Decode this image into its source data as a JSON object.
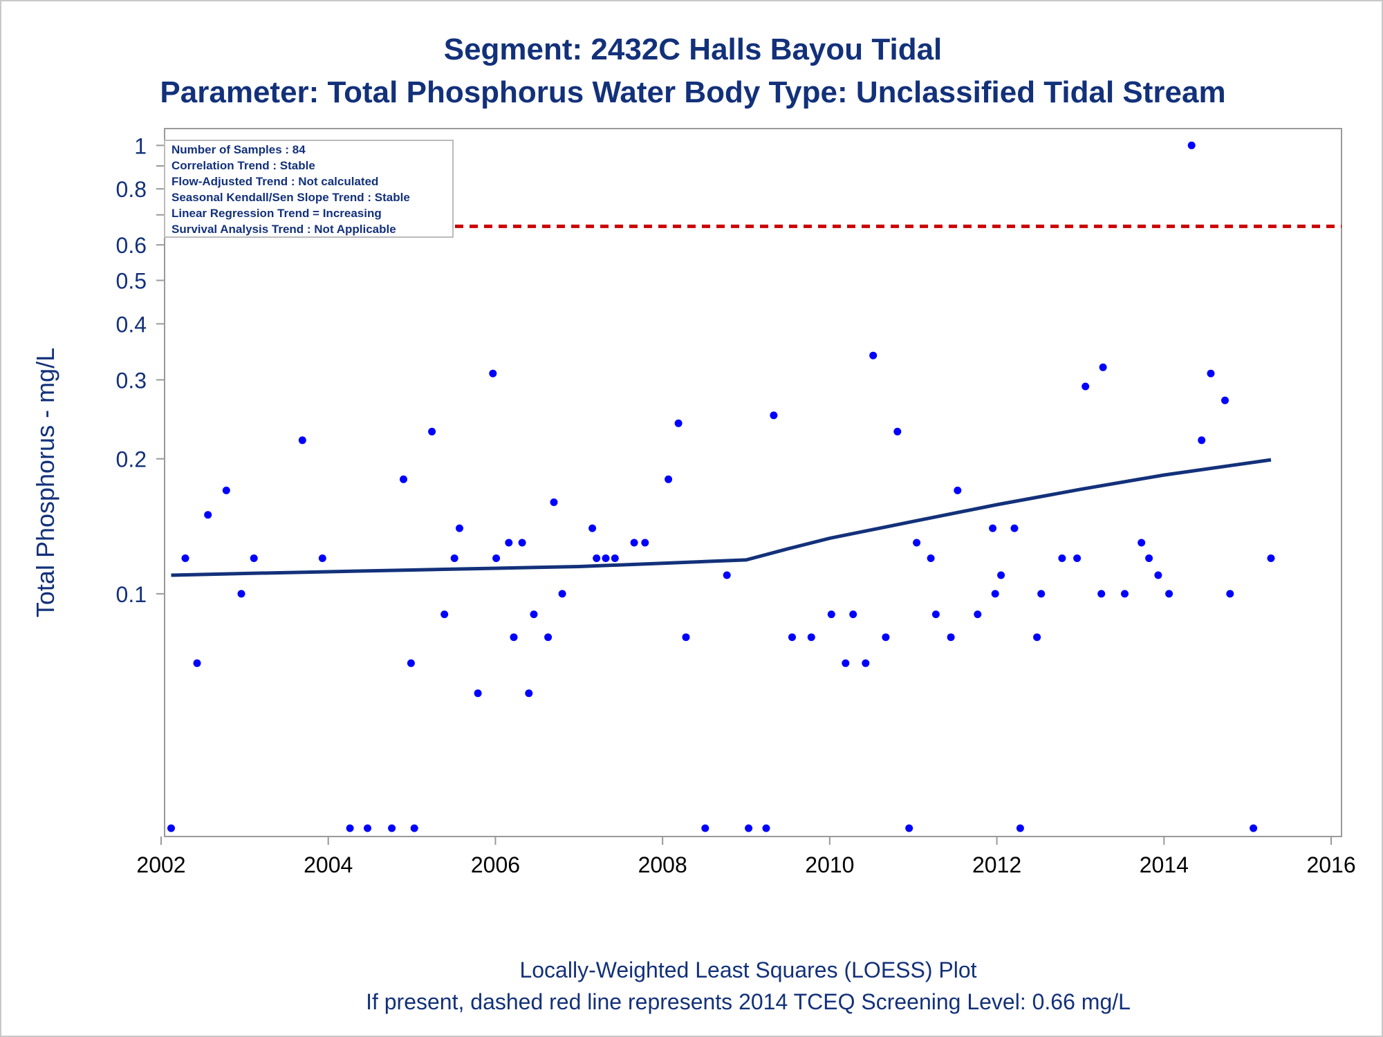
{
  "chart_data": {
    "type": "scatter",
    "title": "Segment: 2432C  Halls Bayou Tidal",
    "subtitle": "Parameter: Total Phosphorus   Water Body Type: Unclassified Tidal Stream",
    "ylabel": "Total Phosphorus - mg/L",
    "xlabel": "",
    "x_scale": "linear (year)",
    "y_scale": "log",
    "xlim": [
      2002,
      2016
    ],
    "ylim": [
      0.03,
      1.03
    ],
    "x_ticks": [
      "2002",
      "2004",
      "2006",
      "2008",
      "2010",
      "2012",
      "2014",
      "2016"
    ],
    "y_ticks": [
      {
        "value": 1,
        "label": "1"
      },
      {
        "value": 0.8,
        "label": "0.8"
      },
      {
        "value": 0.6,
        "label": "0.6"
      },
      {
        "value": 0.5,
        "label": "0.5"
      },
      {
        "value": 0.4,
        "label": "0.4"
      },
      {
        "value": 0.3,
        "label": "0.3"
      },
      {
        "value": 0.2,
        "label": "0.2"
      },
      {
        "value": 0.1,
        "label": "0.1"
      }
    ],
    "y_minor_ticks": [
      0.9,
      0.7
    ],
    "grid": false,
    "legend": "none",
    "inset_box": {
      "position": "top-left",
      "lines": [
        "Number of Samples : 84",
        "Correlation Trend : Stable",
        "Flow-Adjusted Trend : Not calculated",
        "Seasonal Kendall/Sen Slope Trend : Stable",
        "Linear Regression Trend = Increasing",
        "Survival Analysis Trend : Not Applicable"
      ]
    },
    "screening_level": {
      "value": 0.66,
      "color": "#cc0000",
      "style": "dashed"
    },
    "point_color": "#0000ff",
    "loess_color": "#13317a",
    "points": [
      {
        "x": 2002.12,
        "y": 0.03
      },
      {
        "x": 2002.29,
        "y": 0.12
      },
      {
        "x": 2002.43,
        "y": 0.07
      },
      {
        "x": 2002.56,
        "y": 0.15
      },
      {
        "x": 2002.78,
        "y": 0.17
      },
      {
        "x": 2002.96,
        "y": 0.1
      },
      {
        "x": 2003.11,
        "y": 0.12
      },
      {
        "x": 2003.69,
        "y": 0.22
      },
      {
        "x": 2003.93,
        "y": 0.12
      },
      {
        "x": 2004.26,
        "y": 0.03
      },
      {
        "x": 2004.47,
        "y": 0.03
      },
      {
        "x": 2004.76,
        "y": 0.03
      },
      {
        "x": 2004.9,
        "y": 0.18
      },
      {
        "x": 2004.99,
        "y": 0.07
      },
      {
        "x": 2005.03,
        "y": 0.03
      },
      {
        "x": 2005.24,
        "y": 0.23
      },
      {
        "x": 2005.39,
        "y": 0.09
      },
      {
        "x": 2005.51,
        "y": 0.12
      },
      {
        "x": 2005.57,
        "y": 0.14
      },
      {
        "x": 2005.79,
        "y": 0.06
      },
      {
        "x": 2005.97,
        "y": 0.31
      },
      {
        "x": 2006.01,
        "y": 0.12
      },
      {
        "x": 2006.16,
        "y": 0.13
      },
      {
        "x": 2006.22,
        "y": 0.08
      },
      {
        "x": 2006.32,
        "y": 0.13
      },
      {
        "x": 2006.4,
        "y": 0.06
      },
      {
        "x": 2006.46,
        "y": 0.09
      },
      {
        "x": 2006.63,
        "y": 0.08
      },
      {
        "x": 2006.7,
        "y": 0.16
      },
      {
        "x": 2006.8,
        "y": 0.1
      },
      {
        "x": 2007.16,
        "y": 0.14
      },
      {
        "x": 2007.21,
        "y": 0.12
      },
      {
        "x": 2007.32,
        "y": 0.12
      },
      {
        "x": 2007.43,
        "y": 0.12
      },
      {
        "x": 2007.66,
        "y": 0.13
      },
      {
        "x": 2007.79,
        "y": 0.13
      },
      {
        "x": 2008.07,
        "y": 0.18
      },
      {
        "x": 2008.19,
        "y": 0.24
      },
      {
        "x": 2008.28,
        "y": 0.08
      },
      {
        "x": 2008.51,
        "y": 0.03
      },
      {
        "x": 2008.77,
        "y": 0.11
      },
      {
        "x": 2009.03,
        "y": 0.03
      },
      {
        "x": 2009.24,
        "y": 0.03
      },
      {
        "x": 2009.33,
        "y": 0.25
      },
      {
        "x": 2009.55,
        "y": 0.08
      },
      {
        "x": 2009.78,
        "y": 0.08
      },
      {
        "x": 2010.02,
        "y": 0.09
      },
      {
        "x": 2010.19,
        "y": 0.07
      },
      {
        "x": 2010.28,
        "y": 0.09
      },
      {
        "x": 2010.43,
        "y": 0.07
      },
      {
        "x": 2010.52,
        "y": 0.34
      },
      {
        "x": 2010.67,
        "y": 0.08
      },
      {
        "x": 2010.81,
        "y": 0.23
      },
      {
        "x": 2010.95,
        "y": 0.03
      },
      {
        "x": 2011.04,
        "y": 0.13
      },
      {
        "x": 2011.21,
        "y": 0.12
      },
      {
        "x": 2011.27,
        "y": 0.09
      },
      {
        "x": 2011.45,
        "y": 0.08
      },
      {
        "x": 2011.53,
        "y": 0.17
      },
      {
        "x": 2011.77,
        "y": 0.09
      },
      {
        "x": 2011.95,
        "y": 0.14
      },
      {
        "x": 2011.98,
        "y": 0.1
      },
      {
        "x": 2012.05,
        "y": 0.11
      },
      {
        "x": 2012.21,
        "y": 0.14
      },
      {
        "x": 2012.28,
        "y": 0.03
      },
      {
        "x": 2012.48,
        "y": 0.08
      },
      {
        "x": 2012.53,
        "y": 0.1
      },
      {
        "x": 2012.78,
        "y": 0.12
      },
      {
        "x": 2012.96,
        "y": 0.12
      },
      {
        "x": 2013.06,
        "y": 0.29
      },
      {
        "x": 2013.25,
        "y": 0.1
      },
      {
        "x": 2013.27,
        "y": 0.32
      },
      {
        "x": 2013.53,
        "y": 0.1
      },
      {
        "x": 2013.73,
        "y": 0.13
      },
      {
        "x": 2013.82,
        "y": 0.12
      },
      {
        "x": 2013.93,
        "y": 0.11
      },
      {
        "x": 2014.06,
        "y": 0.1
      },
      {
        "x": 2014.33,
        "y": 1.0
      },
      {
        "x": 2014.45,
        "y": 0.22
      },
      {
        "x": 2014.56,
        "y": 0.31
      },
      {
        "x": 2014.73,
        "y": 0.27
      },
      {
        "x": 2014.79,
        "y": 0.1
      },
      {
        "x": 2015.07,
        "y": 0.03
      },
      {
        "x": 2015.28,
        "y": 0.12
      }
    ],
    "loess": [
      {
        "x": 2002.12,
        "y": 0.11
      },
      {
        "x": 2003.0,
        "y": 0.111
      },
      {
        "x": 2004.0,
        "y": 0.112
      },
      {
        "x": 2005.0,
        "y": 0.113
      },
      {
        "x": 2006.0,
        "y": 0.114
      },
      {
        "x": 2007.0,
        "y": 0.115
      },
      {
        "x": 2008.0,
        "y": 0.117
      },
      {
        "x": 2009.0,
        "y": 0.119
      },
      {
        "x": 2009.5,
        "y": 0.126
      },
      {
        "x": 2010.0,
        "y": 0.133
      },
      {
        "x": 2011.0,
        "y": 0.145
      },
      {
        "x": 2012.0,
        "y": 0.158
      },
      {
        "x": 2013.0,
        "y": 0.171
      },
      {
        "x": 2014.0,
        "y": 0.184
      },
      {
        "x": 2015.28,
        "y": 0.199
      }
    ]
  },
  "footer": {
    "line1": "Locally-Weighted Least Squares (LOESS) Plot",
    "line2": "If present, dashed red line represents 2014 TCEQ Screening Level: 0.66 mg/L"
  }
}
